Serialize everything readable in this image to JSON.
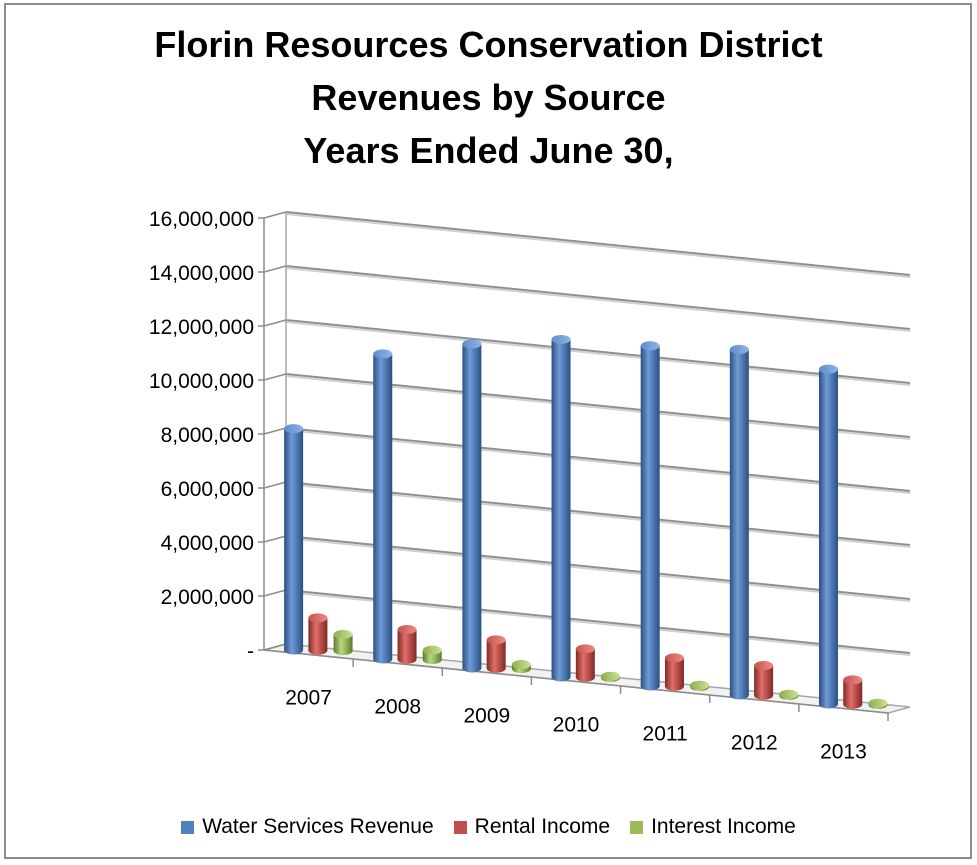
{
  "chart_data": {
    "type": "bar",
    "title": [
      "Florin Resources Conservation District",
      "Revenues by Source",
      "Years Ended June 30,"
    ],
    "categories": [
      "2007",
      "2008",
      "2009",
      "2010",
      "2011",
      "2012",
      "2013"
    ],
    "series": [
      {
        "name": "Water Services Revenue",
        "color": "#4F81BD",
        "values": [
          8200000,
          11300000,
          12000000,
          12500000,
          12600000,
          12800000,
          12400000
        ]
      },
      {
        "name": "Rental Income",
        "color": "#C0504D",
        "values": [
          1200000,
          1100000,
          1050000,
          1050000,
          1050000,
          1100000,
          900000
        ]
      },
      {
        "name": "Interest Income",
        "color": "#9BBB59",
        "values": [
          600000,
          350000,
          150000,
          50000,
          50000,
          50000,
          50000
        ]
      }
    ],
    "yticks": [
      "-",
      "2,000,000",
      "4,000,000",
      "6,000,000",
      "8,000,000",
      "10,000,000",
      "12,000,000",
      "14,000,000",
      "16,000,000"
    ],
    "ylim": [
      0,
      16000000
    ],
    "grid": true,
    "legend_position": "bottom",
    "projection": "3d"
  }
}
